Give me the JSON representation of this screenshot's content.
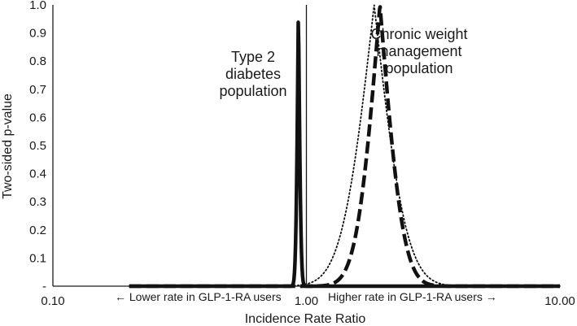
{
  "chart_data": {
    "type": "line",
    "xscale": "log",
    "xlim": [
      0.1,
      10
    ],
    "ylim": [
      0,
      1
    ],
    "xlabel": "Incidence Rate Ratio",
    "ylabel": "Two-sided p-value",
    "x_tick_labels": [
      "0.10",
      "1.00",
      "10.00"
    ],
    "y_tick_labels": [
      "-",
      "0.1",
      "0.2",
      "0.3",
      "0.4",
      "0.5",
      "0.6",
      "0.7",
      "0.8",
      "0.9",
      "1.0"
    ],
    "reference_line_x": 1.0,
    "direction_notes": {
      "left": "← Lower rate in GLP-1-RA users",
      "right": "Higher rate in GLP-1-RA users →"
    },
    "annotations": {
      "t2d": [
        "Type 2",
        "diabetes",
        "population"
      ],
      "cwm": [
        "Chronic weight",
        "management",
        "population"
      ]
    },
    "series": [
      {
        "name": "Type 2 diabetes population",
        "style": "solid",
        "color": "#111111",
        "center": 0.93,
        "se": 0.018
      },
      {
        "name": "Chronic weight management population (dashed)",
        "style": "dashed",
        "color": "#111111",
        "center": 1.95,
        "se": 0.165
      },
      {
        "name": "Chronic weight management population (dotted)",
        "style": "dotted",
        "color": "#111111",
        "center": 1.85,
        "se": 0.23
      }
    ]
  }
}
